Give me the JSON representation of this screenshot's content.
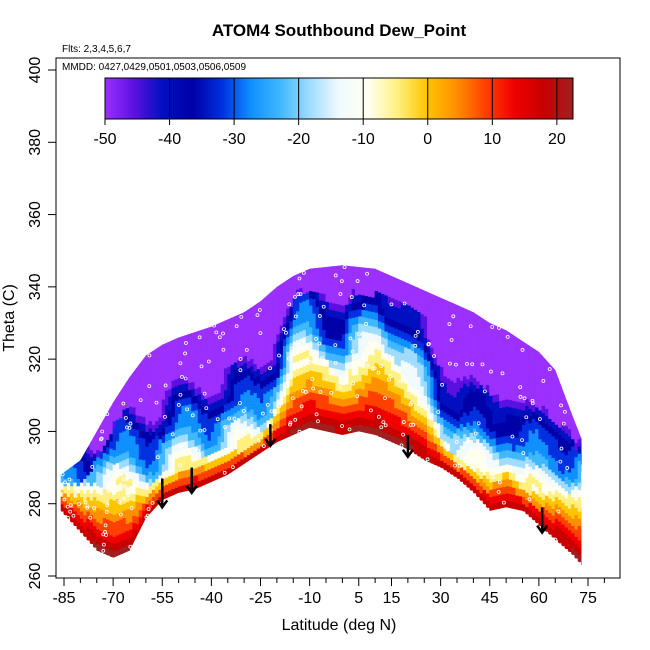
{
  "chart_data": {
    "type": "heatmap",
    "title": "ATOM4 Southbound Dew_Point",
    "subtitle_flights": "Flts: 2,3,4,5,6,7",
    "subtitle_dates": "MMDD: 0427,0429,0501,0503,0506,0509",
    "xlabel": "Latitude (deg N)",
    "ylabel": "Theta (C)",
    "xlim": [
      -87,
      90
    ],
    "ylim": [
      260,
      404
    ],
    "x_ticks": [
      -85,
      -70,
      -55,
      -40,
      -25,
      -10,
      5,
      15,
      30,
      45,
      60,
      75
    ],
    "x_minor_ticks": [
      -80,
      -75,
      -65,
      -60,
      -50,
      -45,
      -35,
      -30,
      -20,
      -15,
      -5,
      0,
      10,
      20,
      25,
      35,
      40,
      50,
      55,
      65,
      70,
      80,
      85
    ],
    "y_ticks": [
      260,
      280,
      300,
      320,
      340,
      360,
      380,
      400
    ],
    "colorbar": {
      "min": -50,
      "max": 22.5,
      "ticks": [
        -50,
        -40,
        -30,
        -20,
        -10,
        0,
        10,
        20
      ],
      "colors": [
        "#9b30ff",
        "#5a10e0",
        "#0010c0",
        "#0000a8",
        "#0030e0",
        "#1090ff",
        "#40b8ff",
        "#a0dcff",
        "#f0faff",
        "#fffff0",
        "#fff080",
        "#ffc400",
        "#ff9000",
        "#ff4000",
        "#f00000",
        "#c80000",
        "#a02020"
      ]
    },
    "boundary_top": [
      [
        -86,
        288
      ],
      [
        -80,
        292
      ],
      [
        -75,
        300
      ],
      [
        -70,
        308
      ],
      [
        -65,
        315
      ],
      [
        -60,
        321
      ],
      [
        -55,
        324
      ],
      [
        -50,
        326
      ],
      [
        -40,
        329
      ],
      [
        -35,
        331
      ],
      [
        -30,
        333
      ],
      [
        -25,
        336
      ],
      [
        -20,
        340
      ],
      [
        -15,
        343
      ],
      [
        -10,
        345
      ],
      [
        0,
        346
      ],
      [
        10,
        345
      ],
      [
        15,
        343
      ],
      [
        20,
        341
      ],
      [
        25,
        339
      ],
      [
        30,
        337
      ],
      [
        35,
        335
      ],
      [
        40,
        333
      ],
      [
        45,
        330
      ],
      [
        50,
        328
      ],
      [
        55,
        325
      ],
      [
        60,
        322
      ],
      [
        65,
        317
      ],
      [
        70,
        305
      ],
      [
        73,
        298
      ]
    ],
    "boundary_bottom": [
      [
        -86,
        278
      ],
      [
        -80,
        272
      ],
      [
        -75,
        267
      ],
      [
        -70,
        265
      ],
      [
        -65,
        267
      ],
      [
        -60,
        276
      ],
      [
        -55,
        281
      ],
      [
        -50,
        283
      ],
      [
        -45,
        284
      ],
      [
        -40,
        286
      ],
      [
        -35,
        288
      ],
      [
        -30,
        291
      ],
      [
        -25,
        294
      ],
      [
        -20,
        297
      ],
      [
        -15,
        299
      ],
      [
        -10,
        301
      ],
      [
        -5,
        300
      ],
      [
        0,
        299
      ],
      [
        5,
        300
      ],
      [
        10,
        299
      ],
      [
        15,
        297
      ],
      [
        20,
        295
      ],
      [
        25,
        292
      ],
      [
        30,
        290
      ],
      [
        35,
        287
      ],
      [
        40,
        283
      ],
      [
        45,
        278
      ],
      [
        50,
        279
      ],
      [
        55,
        278
      ],
      [
        60,
        274
      ],
      [
        65,
        270
      ],
      [
        70,
        266
      ],
      [
        73,
        263
      ]
    ],
    "warm_core_ridge": [
      [
        -60,
        284
      ],
      [
        -55,
        287
      ],
      [
        -50,
        290
      ],
      [
        -45,
        292
      ],
      [
        -40,
        292
      ],
      [
        -35,
        294
      ],
      [
        -30,
        296
      ],
      [
        -25,
        299
      ],
      [
        -20,
        306
      ],
      [
        -15,
        318
      ],
      [
        -10,
        321
      ],
      [
        -5,
        318
      ],
      [
        0,
        313
      ],
      [
        5,
        318
      ],
      [
        10,
        324
      ],
      [
        15,
        319
      ],
      [
        20,
        312
      ],
      [
        25,
        306
      ],
      [
        30,
        297
      ],
      [
        35,
        292
      ],
      [
        40,
        289
      ],
      [
        45,
        288
      ],
      [
        50,
        290
      ],
      [
        55,
        285
      ],
      [
        60,
        283
      ],
      [
        65,
        284
      ],
      [
        70,
        282
      ]
    ],
    "dew_point_levels": [
      {
        "value": -15,
        "height": 1.0
      },
      {
        "value": -5,
        "height": 0.8
      },
      {
        "value": 3,
        "height": 0.55
      },
      {
        "value": 10,
        "height": 0.32
      },
      {
        "value": 16,
        "height": 0.15
      }
    ],
    "arrows": [
      {
        "lat": -55,
        "theta_start": 287,
        "theta_end": 279
      },
      {
        "lat": -46,
        "theta_start": 290,
        "theta_end": 283
      },
      {
        "lat": -22,
        "theta_start": 302,
        "theta_end": 296
      },
      {
        "lat": 20,
        "theta_start": 299,
        "theta_end": 293
      },
      {
        "lat": 61,
        "theta_start": 279,
        "theta_end": 272
      }
    ]
  }
}
